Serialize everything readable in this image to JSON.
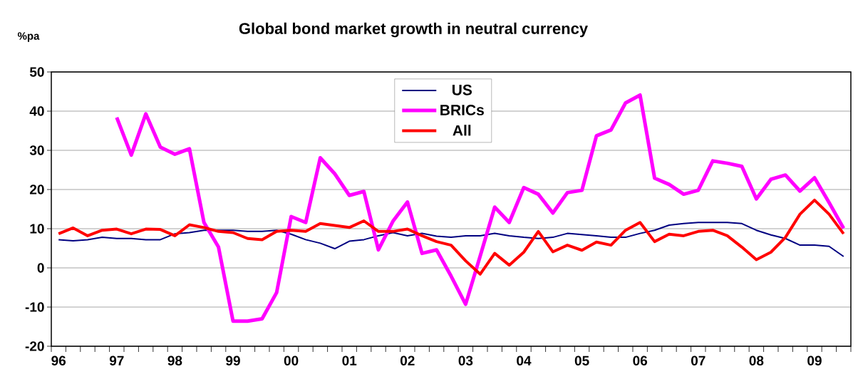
{
  "chart_data": {
    "type": "line",
    "title": "Global bond market growth in neutral currency",
    "ylabel": "%pa",
    "categories": [
      "96",
      null,
      null,
      null,
      "97",
      null,
      null,
      null,
      "98",
      null,
      null,
      null,
      "99",
      null,
      null,
      null,
      "00",
      null,
      null,
      null,
      "01",
      null,
      null,
      null,
      "02",
      null,
      null,
      null,
      "03",
      null,
      null,
      null,
      "04",
      null,
      null,
      null,
      "05",
      null,
      null,
      null,
      "06",
      null,
      null,
      null,
      "07",
      null,
      null,
      null,
      "08",
      null,
      null,
      null,
      "09",
      null,
      null
    ],
    "series": [
      {
        "name": "US",
        "color": "#000080",
        "values": [
          7.2,
          6.9,
          7.2,
          7.8,
          7.5,
          7.5,
          7.2,
          7.2,
          8.7,
          9.0,
          9.6,
          9.6,
          9.6,
          9.3,
          9.3,
          9.6,
          8.6,
          7.2,
          6.3,
          4.9,
          6.8,
          7.2,
          8.2,
          9.0,
          8.2,
          8.8,
          8.1,
          7.8,
          8.2,
          8.2,
          8.8,
          8.2,
          7.8,
          7.5,
          7.8,
          8.8,
          8.5,
          8.2,
          7.8,
          7.8,
          8.8,
          9.6,
          10.9,
          11.3,
          11.6,
          11.6,
          11.6,
          11.3,
          9.6,
          8.4,
          7.5,
          5.8,
          5.8,
          5.5,
          2.9
        ]
      },
      {
        "name": "BRICs",
        "color": "#ff00ff",
        "values": [
          null,
          null,
          null,
          null,
          38.4,
          28.8,
          39.3,
          30.8,
          29.0,
          30.4,
          11.6,
          5.3,
          -13.6,
          -13.6,
          -13.0,
          -6.3,
          13.1,
          11.6,
          28.1,
          24.0,
          18.5,
          19.5,
          4.6,
          11.9,
          16.8,
          3.7,
          4.6,
          -2.1,
          -9.3,
          3.0,
          15.5,
          11.6,
          20.5,
          18.8,
          14.0,
          19.2,
          19.8,
          33.7,
          35.2,
          42.1,
          44.1,
          22.9,
          21.3,
          18.8,
          19.8,
          27.3,
          26.7,
          25.9,
          17.6,
          22.6,
          23.7,
          19.6,
          23.0,
          16.7,
          10.1
        ]
      },
      {
        "name": "All",
        "color": "#ff0000",
        "values": [
          8.7,
          10.2,
          8.2,
          9.6,
          9.9,
          8.7,
          9.9,
          9.8,
          8.2,
          11.0,
          10.3,
          9.3,
          9.0,
          7.5,
          7.2,
          9.3,
          9.6,
          9.3,
          11.3,
          10.8,
          10.3,
          12.0,
          9.3,
          9.3,
          9.9,
          8.2,
          6.7,
          5.8,
          1.8,
          -1.6,
          3.7,
          0.7,
          4.0,
          9.3,
          4.1,
          5.8,
          4.5,
          6.6,
          5.8,
          9.6,
          11.6,
          6.7,
          8.6,
          8.2,
          9.3,
          9.6,
          8.2,
          5.3,
          2.1,
          4.0,
          7.8,
          13.7,
          17.3,
          13.7,
          8.7
        ]
      }
    ],
    "ylim": [
      -20,
      50
    ],
    "yticks": [
      -20,
      -10,
      0,
      10,
      20,
      30,
      40,
      50
    ],
    "grid": "y",
    "legend": "top",
    "marker": "none",
    "line_style": "solid"
  }
}
